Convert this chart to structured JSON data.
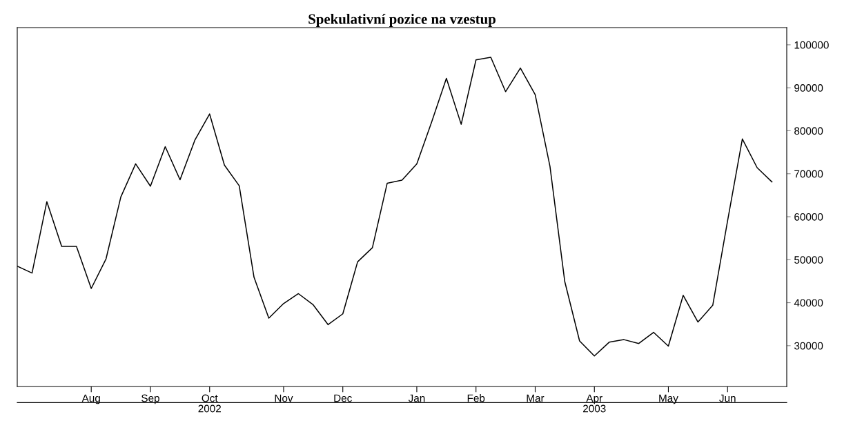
{
  "chart_data": {
    "type": "line",
    "title": "Spekulativní pozice na vzestup",
    "x": [
      "2002-07-02",
      "2002-07-09",
      "2002-07-16",
      "2002-07-23",
      "2002-07-30",
      "2002-08-06",
      "2002-08-13",
      "2002-08-20",
      "2002-08-27",
      "2002-09-03",
      "2002-09-10",
      "2002-09-17",
      "2002-09-24",
      "2002-10-01",
      "2002-10-08",
      "2002-10-15",
      "2002-10-22",
      "2002-10-29",
      "2002-11-05",
      "2002-11-12",
      "2002-11-19",
      "2002-11-26",
      "2002-12-03",
      "2002-12-10",
      "2002-12-17",
      "2002-12-24",
      "2002-12-31",
      "2003-01-07",
      "2003-01-14",
      "2003-01-21",
      "2003-01-28",
      "2003-02-04",
      "2003-02-11",
      "2003-02-18",
      "2003-02-25",
      "2003-03-04",
      "2003-03-11",
      "2003-03-18",
      "2003-03-25",
      "2003-04-01",
      "2003-04-08",
      "2003-04-15",
      "2003-04-22",
      "2003-04-29",
      "2003-05-06",
      "2003-05-13",
      "2003-05-20",
      "2003-05-27",
      "2003-06-03",
      "2003-06-10",
      "2003-06-17",
      "2003-06-24"
    ],
    "series": [
      {
        "color": "#000000",
        "values": [
          48500,
          46900,
          63500,
          53100,
          53100,
          43300,
          50200,
          64600,
          72300,
          67100,
          76300,
          68600,
          77800,
          83900,
          72000,
          67200,
          45900,
          36400,
          39800,
          42100,
          39500,
          34900,
          37400,
          49500,
          52800,
          67800,
          68500,
          72300,
          82000,
          92200,
          81500,
          96500,
          97100,
          89100,
          94600,
          88400,
          71700,
          44900,
          31100,
          27600,
          30800,
          31400,
          30500,
          33100,
          29900,
          41700,
          35500,
          39400,
          59000,
          78100,
          71400,
          68100
        ]
      }
    ],
    "xlim": [
      "2002-07-02",
      "2003-07-01"
    ],
    "xticks": [
      {
        "value": "2002-08-06",
        "label": "Aug"
      },
      {
        "value": "2002-09-03",
        "label": "Sep"
      },
      {
        "value": "2002-10-01",
        "label": "Oct"
      },
      {
        "value": "2002-11-05",
        "label": "Nov"
      },
      {
        "value": "2002-12-03",
        "label": "Dec"
      },
      {
        "value": "2003-01-07",
        "label": "Jan"
      },
      {
        "value": "2003-02-04",
        "label": "Feb"
      },
      {
        "value": "2003-03-04",
        "label": "Mar"
      },
      {
        "value": "2003-04-01",
        "label": "Apr"
      },
      {
        "value": "2003-05-06",
        "label": "May"
      },
      {
        "value": "2003-06-03",
        "label": "Jun"
      }
    ],
    "ylim": [
      20500,
      104000
    ],
    "yticks": [
      30000,
      40000,
      50000,
      60000,
      70000,
      80000,
      90000,
      100000
    ],
    "x2lim": [
      "2002-07-02",
      "2003-07-01"
    ],
    "x2ticks": [
      {
        "value": "2002-10-01",
        "label": "2002"
      },
      {
        "value": "2003-04-01",
        "label": "2003"
      }
    ],
    "grid": false,
    "marker": "none",
    "line_style": "solid"
  }
}
